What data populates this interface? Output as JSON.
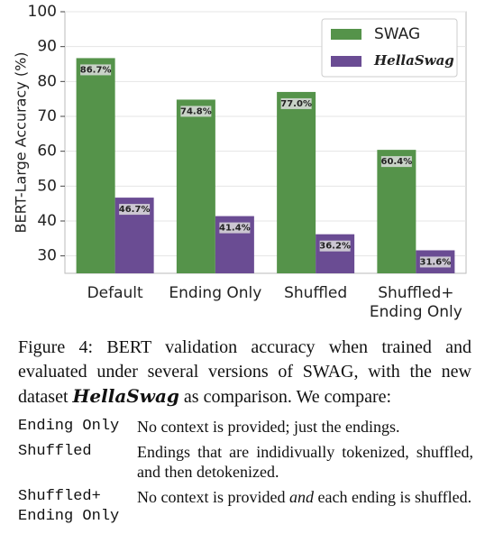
{
  "chart_data": {
    "type": "bar",
    "ylabel": "BERT-Large Accuracy (%)",
    "categories": [
      "Default",
      "Ending Only",
      "Shuffled",
      "Shuffled+\nEnding Only"
    ],
    "series": [
      {
        "name": "SWAG",
        "color": "#55934a",
        "values": [
          86.7,
          74.8,
          77.0,
          60.4
        ],
        "value_labels": [
          "86.7%",
          "74.8%",
          "77.0%",
          "60.4%"
        ]
      },
      {
        "name": "HellaSwag",
        "color": "#6a4c93",
        "values": [
          46.7,
          41.4,
          36.2,
          31.6
        ],
        "value_labels": [
          "46.7%",
          "41.4%",
          "36.2%",
          "31.6%"
        ]
      }
    ],
    "ylim": [
      25,
      100
    ],
    "yticks": [
      30,
      40,
      50,
      60,
      70,
      80,
      90,
      100
    ],
    "grid": true,
    "legend": "upper right"
  },
  "caption": {
    "label": "Figure 4:",
    "text_before": "BERT validation accuracy when trained and evaluated under several versions of SWAG, with the new dataset",
    "dataset": "HellaSwag",
    "text_after": "as comparison. We compare:",
    "items": [
      {
        "term": "Ending Only",
        "desc_before": "No context is provided; just the endings."
      },
      {
        "term": "Shuffled",
        "desc_before": "Endings that are indidivually tokenized, shuffled, and then detokenized."
      },
      {
        "term": "Shuffled+\nEnding Only",
        "desc_before": "No context is provided",
        "desc_em": "and",
        "desc_after": "each ending is shuffled."
      }
    ]
  }
}
